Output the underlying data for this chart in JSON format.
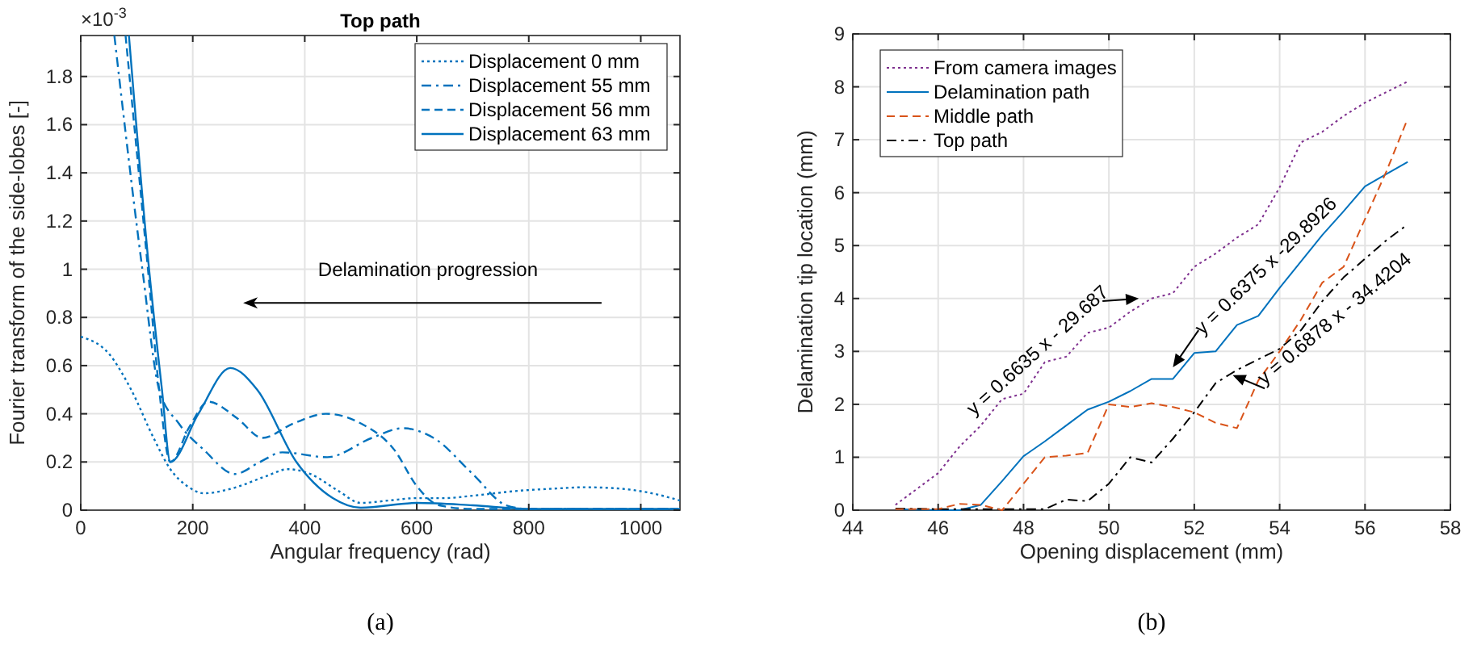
{
  "chart_data": [
    {
      "type": "line",
      "title": "Top path",
      "xlabel": "Angular frequency (rad)",
      "ylabel": "Fourier transform of the side-lobes [-]",
      "xlim": [
        0,
        1070
      ],
      "ylim": [
        0,
        1.97
      ],
      "xticks": [
        0,
        200,
        400,
        600,
        800,
        1000
      ],
      "yticks": [
        0,
        0.2,
        0.4,
        0.6,
        0.8,
        1,
        1.2,
        1.4,
        1.6,
        1.8
      ],
      "grid": true,
      "legend": "top right",
      "annotations": [
        "×10$^{-3}$",
        "Delamination progression",
        "(a)"
      ],
      "series": [
        {
          "name": "Displacement 0 mm",
          "color": "#0072bd",
          "line_style": "dotted",
          "x": [
            0,
            50,
            90,
            130,
            160,
            190,
            220,
            270,
            330,
            370,
            410,
            460,
            500,
            550,
            600,
            650,
            700,
            780,
            850,
            900,
            960,
            1020,
            1070
          ],
          "values": [
            0.72,
            0.65,
            0.5,
            0.3,
            0.17,
            0.1,
            0.07,
            0.09,
            0.14,
            0.17,
            0.15,
            0.08,
            0.03,
            0.04,
            0.05,
            0.05,
            0.06,
            0.08,
            0.09,
            0.095,
            0.09,
            0.07,
            0.04
          ]
        },
        {
          "name": "Displacement 55 mm",
          "color": "#0072bd",
          "line_style": "dashdot",
          "x": [
            60,
            110,
            140,
            175,
            220,
            275,
            320,
            360,
            440,
            520,
            575,
            630,
            700,
            760,
            800,
            1070
          ],
          "values": [
            1.97,
            1,
            0.5,
            0.36,
            0.25,
            0.15,
            0.2,
            0.24,
            0.22,
            0.3,
            0.34,
            0.3,
            0.15,
            0.02,
            0.005,
            0.005
          ]
        },
        {
          "name": "Displacement 56 mm",
          "color": "#0072bd",
          "line_style": "dashed",
          "x": [
            80,
            120,
            140,
            160,
            195,
            228,
            280,
            324,
            380,
            438,
            500,
            560,
            600,
            640,
            700,
            1070
          ],
          "values": [
            1.97,
            1,
            0.5,
            0.2,
            0.35,
            0.45,
            0.38,
            0.3,
            0.36,
            0.4,
            0.36,
            0.25,
            0.1,
            0.02,
            0.005,
            0.005
          ]
        },
        {
          "name": "Displacement 63 mm",
          "color": "#0072bd",
          "line_style": "solid",
          "x": [
            86,
            122,
            145,
            160,
            210,
            267,
            315,
            385,
            450,
            500,
            600,
            700,
            800,
            1070
          ],
          "values": [
            1.97,
            1,
            0.5,
            0.2,
            0.4,
            0.59,
            0.5,
            0.2,
            0.05,
            0.01,
            0.03,
            0.02,
            0.005,
            0.005
          ]
        }
      ]
    },
    {
      "type": "line",
      "xlabel": "Opening displacement (mm)",
      "ylabel": "Delamination tip location (mm)",
      "xlim": [
        44,
        58
      ],
      "ylim": [
        0,
        9
      ],
      "xticks": [
        44,
        46,
        48,
        50,
        52,
        54,
        56,
        58
      ],
      "yticks": [
        0,
        1,
        2,
        3,
        4,
        5,
        6,
        7,
        8,
        9
      ],
      "grid": true,
      "legend": "top left",
      "annotations": [
        {
          "text": "y = 0.6635 x - 29.687",
          "x": 50.7,
          "y": 4.0
        },
        {
          "text": "y = 0.6375 x -29.8926",
          "x": 51.5,
          "y": 2.7
        },
        {
          "text": "y = 0.6878 x - 34.4204",
          "x": 52.9,
          "y": 2.55
        },
        "(b)"
      ],
      "series": [
        {
          "name": "From camera images",
          "color": "#7e2f8e",
          "line_style": "dotted",
          "x": [
            45,
            46,
            46.5,
            47,
            47.5,
            48,
            48.5,
            49,
            49.5,
            50,
            50.5,
            51,
            51.5,
            52,
            52.5,
            53,
            53.5,
            54,
            54.5,
            55,
            55.5,
            56,
            56.5,
            57
          ],
          "values": [
            0.1,
            0.7,
            1.2,
            1.6,
            2.1,
            2.2,
            2.8,
            2.9,
            3.35,
            3.45,
            3.75,
            4.0,
            4.1,
            4.6,
            4.85,
            5.15,
            5.4,
            6.1,
            6.95,
            7.15,
            7.45,
            7.7,
            7.9,
            8.1
          ]
        },
        {
          "name": "Delamination path",
          "color": "#0072bd",
          "line_style": "solid",
          "x": [
            45,
            46,
            46.5,
            47,
            47.5,
            48,
            48.5,
            49,
            49.5,
            50,
            50.5,
            51,
            51.5,
            52,
            52.5,
            53,
            53.5,
            54,
            54.5,
            55,
            55.5,
            56,
            56.5,
            57
          ],
          "values": [
            0.02,
            0,
            0,
            0.1,
            0.55,
            1.02,
            1.3,
            1.6,
            1.9,
            2.05,
            2.25,
            2.48,
            2.48,
            2.97,
            3.0,
            3.5,
            3.67,
            4.2,
            4.7,
            5.2,
            5.65,
            6.12,
            6.35,
            6.58
          ]
        },
        {
          "name": "Middle path",
          "color": "#d95319",
          "line_style": "dashed",
          "x": [
            45,
            46,
            46.5,
            47,
            47.5,
            48,
            48.5,
            49,
            49.5,
            50,
            50.5,
            51,
            51.5,
            52,
            52.5,
            53,
            53.5,
            54,
            54.5,
            55,
            55.5,
            56,
            56.5,
            57
          ],
          "values": [
            0.02,
            0.02,
            0.12,
            0.1,
            0,
            0.5,
            1.0,
            1.03,
            1.08,
            2.0,
            1.95,
            2.02,
            1.95,
            1.85,
            1.65,
            1.55,
            2.45,
            3.0,
            3.6,
            4.3,
            4.6,
            5.5,
            6.4,
            7.4
          ]
        },
        {
          "name": "Top path",
          "color": "#000000",
          "line_style": "dashdot",
          "x": [
            45,
            46,
            47,
            48,
            48.5,
            49,
            49.5,
            50,
            50.5,
            51,
            51.5,
            52,
            52.5,
            53,
            53.5,
            54,
            54.5,
            55,
            55.5,
            56,
            56.5,
            57
          ],
          "values": [
            0.03,
            0.02,
            0.02,
            0.02,
            0.02,
            0.2,
            0.17,
            0.5,
            1.0,
            0.9,
            1.35,
            1.85,
            2.4,
            2.65,
            2.85,
            3.05,
            3.4,
            3.95,
            4.4,
            4.75,
            5.1,
            5.4
          ]
        }
      ]
    }
  ]
}
